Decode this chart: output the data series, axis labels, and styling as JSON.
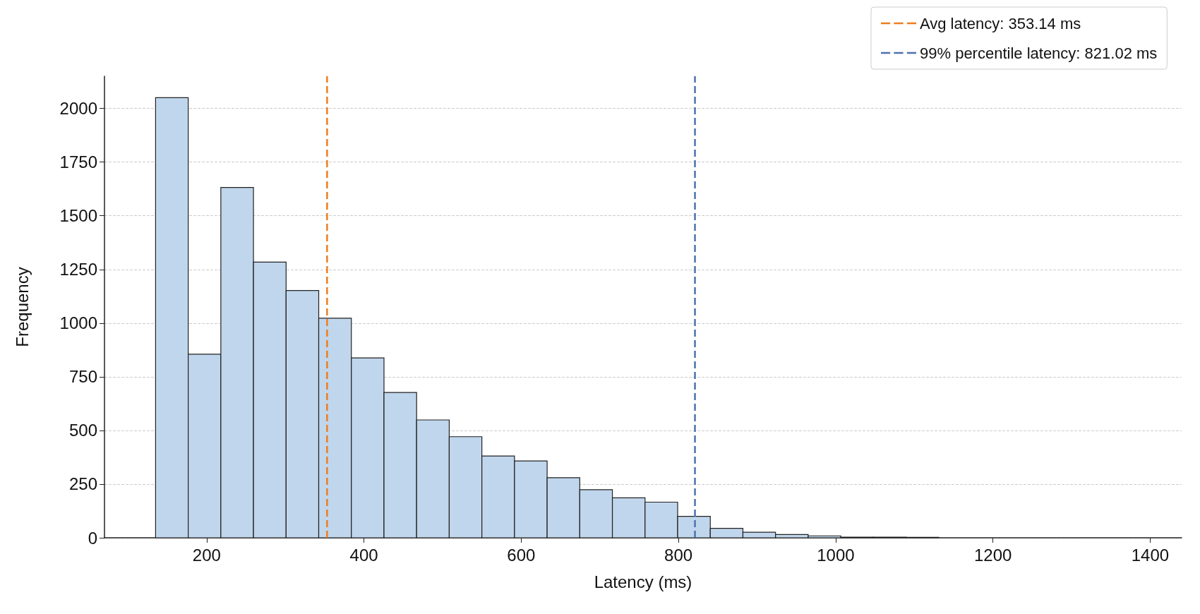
{
  "chart_data": {
    "type": "histogram",
    "xlabel": "Latency (ms)",
    "ylabel": "Frequency",
    "bins": [
      135,
      176.5,
      218,
      259.5,
      301,
      342.5,
      384,
      425.5,
      467,
      508.5,
      550,
      591.5,
      633,
      674.5,
      716,
      757.5,
      799,
      840.5,
      882,
      923.5,
      965,
      1006.5,
      1048,
      1089.5,
      1131,
      1172.5,
      1214,
      1255.5,
      1297,
      1338.5,
      1380
    ],
    "values": [
      2050,
      855,
      1632,
      1284,
      1152,
      1023,
      838,
      677,
      549,
      471,
      381,
      358,
      280,
      224,
      186,
      166,
      100,
      44,
      26,
      15,
      9,
      3,
      3,
      2,
      0,
      0,
      0,
      0,
      0,
      0
    ],
    "color": "#c0d6ec",
    "xlim": [
      70,
      1440
    ],
    "xticks": [
      200,
      400,
      600,
      800,
      1000,
      1200,
      1400
    ],
    "ylim": [
      0,
      2150
    ],
    "yticks": [
      0,
      250,
      500,
      750,
      1000,
      1250,
      1500,
      1750,
      2000
    ],
    "grid": "y",
    "legend": "top right",
    "ref_lines": [
      {
        "axis": "x",
        "value": 353.14,
        "label": "Avg latency: 353.14 ms",
        "color": "#ee7d1f",
        "line_style": "dashed"
      },
      {
        "axis": "x",
        "value": 821.02,
        "label": "99% percentile latency: 821.02 ms",
        "color": "#4c72b0",
        "line_style": "dashed"
      }
    ]
  }
}
